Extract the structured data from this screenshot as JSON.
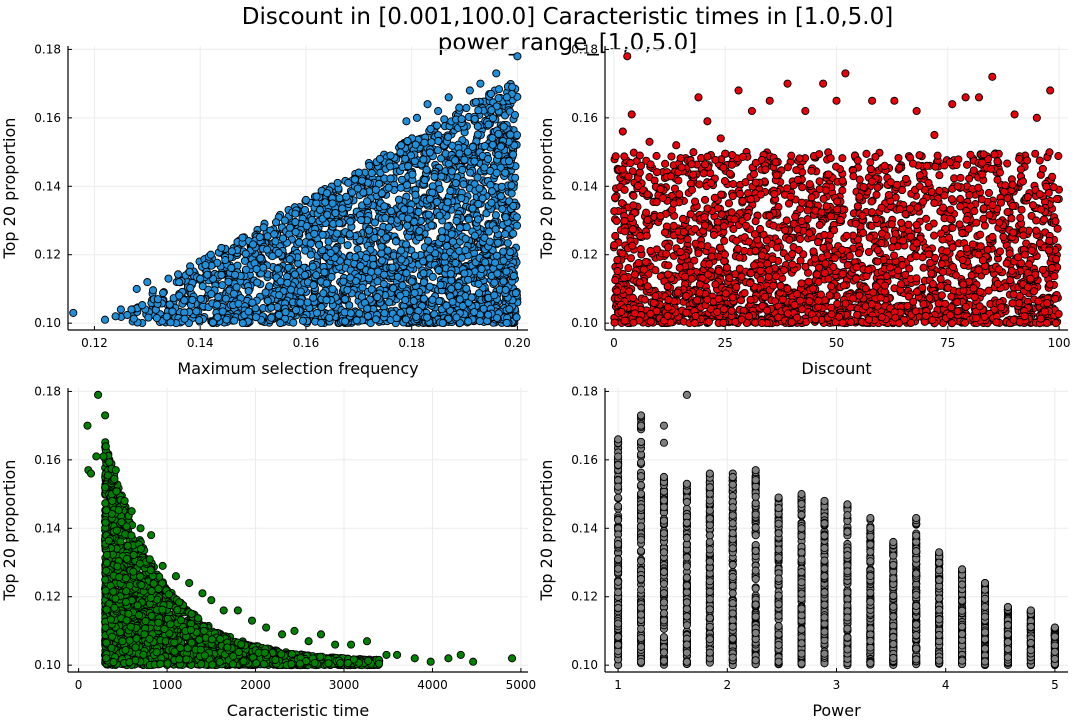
{
  "figure": {
    "title_line1": "Discount in [0.001,100.0] Caracteristic times in [1.0,5.0]",
    "title_line2": "power_range_[1,0,5.0]"
  },
  "colors": {
    "blue": "#1f8fd9",
    "red": "#e8000b",
    "green": "#008000",
    "gray": "#808080",
    "grid": "#ececec",
    "axis": "#000000"
  },
  "chart_data": [
    {
      "type": "scatter",
      "xlabel": "Maximum selection frequency",
      "ylabel": "Top 20 proportion",
      "xlim": [
        0.115,
        0.202
      ],
      "ylim": [
        0.098,
        0.181
      ],
      "xticks": [
        0.12,
        0.14,
        0.16,
        0.18,
        0.2
      ],
      "xtick_labels": [
        "0.12",
        "0.14",
        "0.16",
        "0.18",
        "0.20"
      ],
      "yticks": [
        0.1,
        0.12,
        0.14,
        0.16,
        0.18
      ],
      "ytick_labels": [
        "0.10",
        "0.12",
        "0.14",
        "0.16",
        "0.18"
      ],
      "color": "blue",
      "points": [
        [
          0.116,
          0.103
        ],
        [
          0.122,
          0.101
        ],
        [
          0.124,
          0.102
        ],
        [
          0.125,
          0.104
        ],
        [
          0.127,
          0.104
        ],
        [
          0.128,
          0.11
        ],
        [
          0.13,
          0.112
        ],
        [
          0.132,
          0.107
        ],
        [
          0.134,
          0.113
        ],
        [
          0.136,
          0.112
        ],
        [
          0.138,
          0.115
        ],
        [
          0.14,
          0.113
        ],
        [
          0.141,
          0.117
        ],
        [
          0.142,
          0.12
        ],
        [
          0.144,
          0.122
        ],
        [
          0.146,
          0.121
        ],
        [
          0.148,
          0.125
        ],
        [
          0.15,
          0.123
        ],
        [
          0.152,
          0.128
        ],
        [
          0.154,
          0.126
        ],
        [
          0.156,
          0.13
        ],
        [
          0.158,
          0.132
        ],
        [
          0.16,
          0.136
        ],
        [
          0.162,
          0.137
        ],
        [
          0.164,
          0.138
        ],
        [
          0.166,
          0.141
        ],
        [
          0.168,
          0.141
        ],
        [
          0.17,
          0.144
        ],
        [
          0.172,
          0.146
        ],
        [
          0.174,
          0.148
        ],
        [
          0.176,
          0.149
        ],
        [
          0.178,
          0.152
        ],
        [
          0.179,
          0.159
        ],
        [
          0.181,
          0.16
        ],
        [
          0.183,
          0.164
        ],
        [
          0.185,
          0.162
        ],
        [
          0.187,
          0.166
        ],
        [
          0.189,
          0.163
        ],
        [
          0.191,
          0.168
        ],
        [
          0.193,
          0.17
        ],
        [
          0.195,
          0.167
        ],
        [
          0.196,
          0.173
        ],
        [
          0.198,
          0.166
        ],
        [
          0.199,
          0.169
        ],
        [
          0.2,
          0.178
        ]
      ],
      "cloud": {
        "x_min": 0.124,
        "x_max": 0.2,
        "y_min": 0.1,
        "upper_rule": "rises from 0.104 at 0.124 to 0.172 at 0.200",
        "count": 2600
      }
    },
    {
      "type": "scatter",
      "xlabel": "Discount",
      "ylabel": "Top 20 proportion",
      "xlim": [
        -2,
        102
      ],
      "ylim": [
        0.098,
        0.181
      ],
      "xticks": [
        0,
        25,
        50,
        75,
        100
      ],
      "xtick_labels": [
        "0",
        "25",
        "50",
        "75",
        "100"
      ],
      "yticks": [
        0.1,
        0.12,
        0.14,
        0.16,
        0.18
      ],
      "ytick_labels": [
        "0.10",
        "0.12",
        "0.14",
        "0.16",
        "0.18"
      ],
      "color": "red",
      "points": [
        [
          2,
          0.156
        ],
        [
          3,
          0.178
        ],
        [
          4,
          0.161
        ],
        [
          8,
          0.153
        ],
        [
          14,
          0.152
        ],
        [
          19,
          0.166
        ],
        [
          21,
          0.159
        ],
        [
          24,
          0.154
        ],
        [
          28,
          0.168
        ],
        [
          31,
          0.162
        ],
        [
          35,
          0.165
        ],
        [
          39,
          0.17
        ],
        [
          43,
          0.162
        ],
        [
          47,
          0.17
        ],
        [
          50,
          0.165
        ],
        [
          52,
          0.173
        ],
        [
          58,
          0.165
        ],
        [
          63,
          0.165
        ],
        [
          68,
          0.162
        ],
        [
          72,
          0.155
        ],
        [
          76,
          0.164
        ],
        [
          79,
          0.166
        ],
        [
          82,
          0.166
        ],
        [
          85,
          0.172
        ],
        [
          90,
          0.161
        ],
        [
          95,
          0.16
        ],
        [
          98,
          0.168
        ]
      ],
      "cloud": {
        "x_min": 0.001,
        "x_max": 100,
        "y_min": 0.1,
        "upper": 0.15,
        "count": 2600
      }
    },
    {
      "type": "scatter",
      "xlabel": "Caracteristic time",
      "ylabel": "Top 20 proportion",
      "xlim": [
        -120,
        5080
      ],
      "ylim": [
        0.098,
        0.181
      ],
      "xticks": [
        0,
        1000,
        2000,
        3000,
        4000,
        5000
      ],
      "xtick_labels": [
        "0",
        "1000",
        "2000",
        "3000",
        "4000",
        "5000"
      ],
      "yticks": [
        0.1,
        0.12,
        0.14,
        0.16,
        0.18
      ],
      "ytick_labels": [
        "0.10",
        "0.12",
        "0.14",
        "0.16",
        "0.18"
      ],
      "color": "green",
      "points": [
        [
          100,
          0.17
        ],
        [
          110,
          0.157
        ],
        [
          140,
          0.156
        ],
        [
          200,
          0.161
        ],
        [
          220,
          0.179
        ],
        [
          280,
          0.161
        ],
        [
          300,
          0.173
        ],
        [
          300,
          0.152
        ],
        [
          380,
          0.148
        ],
        [
          420,
          0.157
        ],
        [
          520,
          0.148
        ],
        [
          600,
          0.145
        ],
        [
          700,
          0.14
        ],
        [
          820,
          0.138
        ],
        [
          950,
          0.129
        ],
        [
          1100,
          0.126
        ],
        [
          1250,
          0.124
        ],
        [
          1400,
          0.121
        ],
        [
          1500,
          0.119
        ],
        [
          1640,
          0.116
        ],
        [
          1800,
          0.116
        ],
        [
          1960,
          0.113
        ],
        [
          2120,
          0.111
        ],
        [
          2300,
          0.109
        ],
        [
          2440,
          0.11
        ],
        [
          2600,
          0.107
        ],
        [
          2740,
          0.109
        ],
        [
          2900,
          0.106
        ],
        [
          3080,
          0.106
        ],
        [
          3260,
          0.107
        ],
        [
          3480,
          0.103
        ],
        [
          3600,
          0.103
        ],
        [
          3800,
          0.102
        ],
        [
          3980,
          0.101
        ],
        [
          4180,
          0.102
        ],
        [
          4320,
          0.103
        ],
        [
          4460,
          0.101
        ],
        [
          4900,
          0.102
        ]
      ],
      "cloud": {
        "x_min": 300,
        "x_max": 3400,
        "y_min": 0.1,
        "upper_rule": "decays from 0.166 at 300 toward 0.102 at 3400",
        "count": 2600
      }
    },
    {
      "type": "scatter",
      "xlabel": "Power",
      "ylabel": "Top 20 proportion",
      "xlim": [
        0.88,
        5.12
      ],
      "ylim": [
        0.098,
        0.181
      ],
      "xticks": [
        1,
        2,
        3,
        4,
        5
      ],
      "xtick_labels": [
        "1",
        "2",
        "3",
        "4",
        "5"
      ],
      "yticks": [
        0.1,
        0.12,
        0.14,
        0.16,
        0.18
      ],
      "ytick_labels": [
        "0.10",
        "0.12",
        "0.14",
        "0.16",
        "0.18"
      ],
      "color": "gray",
      "columns": [
        {
          "x": 1.0,
          "max": 0.166
        },
        {
          "x": 1.21,
          "max": 0.173
        },
        {
          "x": 1.42,
          "max": 0.155
        },
        {
          "x": 1.63,
          "max": 0.153
        },
        {
          "x": 1.84,
          "max": 0.156
        },
        {
          "x": 2.05,
          "max": 0.156
        },
        {
          "x": 2.26,
          "max": 0.157
        },
        {
          "x": 2.47,
          "max": 0.149
        },
        {
          "x": 2.68,
          "max": 0.15
        },
        {
          "x": 2.89,
          "max": 0.148
        },
        {
          "x": 3.1,
          "max": 0.147
        },
        {
          "x": 3.31,
          "max": 0.143
        },
        {
          "x": 3.52,
          "max": 0.136
        },
        {
          "x": 3.73,
          "max": 0.143
        },
        {
          "x": 3.94,
          "max": 0.133
        },
        {
          "x": 4.15,
          "max": 0.128
        },
        {
          "x": 4.36,
          "max": 0.124
        },
        {
          "x": 4.57,
          "max": 0.117
        },
        {
          "x": 4.78,
          "max": 0.116
        },
        {
          "x": 5.0,
          "max": 0.111
        }
      ],
      "points": [
        [
          1.21,
          0.17
        ],
        [
          1.42,
          0.17
        ],
        [
          1.42,
          0.165
        ],
        [
          1.63,
          0.179
        ],
        [
          1.84,
          0.152
        ],
        [
          2.05,
          0.155
        ]
      ]
    }
  ]
}
